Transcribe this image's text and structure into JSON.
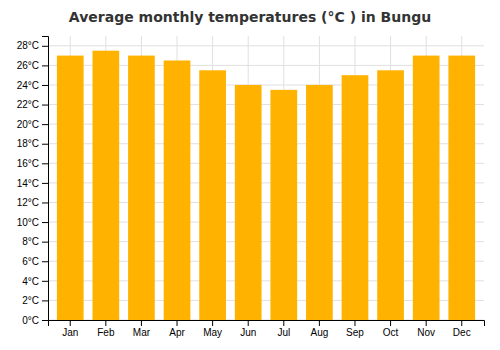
{
  "chart_data": {
    "type": "bar",
    "title": "Average monthly temperatures (°C ) in Bungu",
    "categories": [
      "Jan",
      "Feb",
      "Mar",
      "Apr",
      "May",
      "Jun",
      "Jul",
      "Aug",
      "Sep",
      "Oct",
      "Nov",
      "Dec"
    ],
    "values": [
      27.0,
      27.5,
      27.0,
      26.5,
      25.5,
      24.0,
      23.5,
      24.0,
      25.0,
      25.5,
      27.0,
      27.0
    ],
    "color": "#FFB300",
    "ylim": [
      0,
      29
    ],
    "yticks": [
      {
        "value": 0,
        "label": "0°C"
      },
      {
        "value": 2,
        "label": "2°C"
      },
      {
        "value": 4,
        "label": "4°C"
      },
      {
        "value": 6,
        "label": "6°C"
      },
      {
        "value": 8,
        "label": "8°C"
      },
      {
        "value": 10,
        "label": "10°C"
      },
      {
        "value": 12,
        "label": "12°C"
      },
      {
        "value": 14,
        "label": "14°C"
      },
      {
        "value": 16,
        "label": "16°C"
      },
      {
        "value": 18,
        "label": "18°C"
      },
      {
        "value": 20,
        "label": "20°C"
      },
      {
        "value": 22,
        "label": "22°C"
      },
      {
        "value": 24,
        "label": "24°C"
      },
      {
        "value": 26,
        "label": "26°C"
      },
      {
        "value": 28,
        "label": "28°C"
      }
    ],
    "grid": true
  }
}
